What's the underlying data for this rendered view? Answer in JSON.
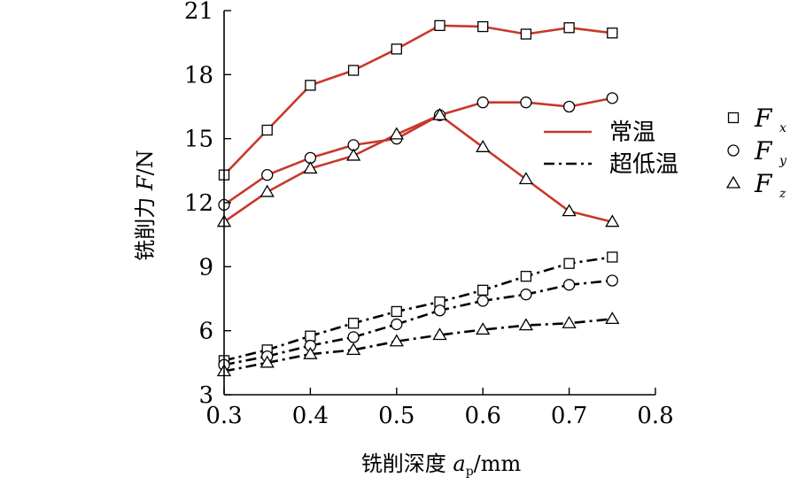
{
  "chart_data": {
    "type": "line",
    "xlabel": {
      "prefix": "铣削深度 ",
      "var": "a",
      "sub": "p",
      "suffix": "/mm"
    },
    "ylabel": {
      "prefix": "铣削力 ",
      "var": "F",
      "suffix": "/N"
    },
    "xlim": [
      0.3,
      0.8
    ],
    "ylim": [
      3,
      21
    ],
    "xticks": [
      "0.3",
      "0.4",
      "0.5",
      "0.6",
      "0.7",
      "0.8"
    ],
    "yticks": [
      "3",
      "6",
      "9",
      "12",
      "15",
      "18",
      "21"
    ],
    "x": [
      0.3,
      0.35,
      0.4,
      0.45,
      0.5,
      0.55,
      0.6,
      0.65,
      0.7,
      0.75
    ],
    "grid": false,
    "line_styles": {
      "normal": {
        "label": "常温",
        "color": "#c8382a",
        "dash": "solid"
      },
      "cryo": {
        "label": "超低温",
        "color": "#000000",
        "dash": "dash-dot"
      }
    },
    "markers": [
      {
        "var": "F",
        "sub": "x",
        "shape": "square"
      },
      {
        "var": "F",
        "sub": "y",
        "shape": "circle"
      },
      {
        "var": "F",
        "sub": "z",
        "shape": "triangle"
      }
    ],
    "series": [
      {
        "condition": "normal",
        "marker": "square",
        "values": [
          13.3,
          15.4,
          17.5,
          18.2,
          19.2,
          20.3,
          20.25,
          19.9,
          20.2,
          19.95
        ]
      },
      {
        "condition": "normal",
        "marker": "circle",
        "values": [
          11.9,
          13.3,
          14.1,
          14.7,
          15.0,
          16.1,
          16.7,
          16.7,
          16.5,
          16.9
        ]
      },
      {
        "condition": "normal",
        "marker": "triangle",
        "values": [
          11.1,
          12.5,
          13.6,
          14.2,
          15.2,
          16.1,
          14.6,
          13.1,
          11.6,
          11.1
        ]
      },
      {
        "condition": "cryo",
        "marker": "square",
        "values": [
          4.6,
          5.1,
          5.75,
          6.35,
          6.9,
          7.35,
          7.9,
          8.55,
          9.15,
          9.45
        ]
      },
      {
        "condition": "cryo",
        "marker": "circle",
        "values": [
          4.4,
          4.8,
          5.3,
          5.7,
          6.3,
          6.95,
          7.4,
          7.7,
          8.15,
          8.35
        ]
      },
      {
        "condition": "cryo",
        "marker": "triangle",
        "values": [
          4.1,
          4.5,
          4.9,
          5.1,
          5.5,
          5.8,
          6.05,
          6.25,
          6.35,
          6.55
        ]
      }
    ]
  }
}
